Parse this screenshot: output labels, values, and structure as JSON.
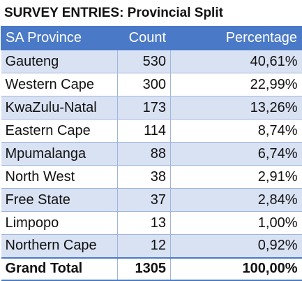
{
  "title": "SURVEY ENTRIES: Provincial Split",
  "header": {
    "province": "SA Province",
    "count": "Count",
    "percentage": "Percentage"
  },
  "rows": [
    {
      "province": "Gauteng",
      "count": "530",
      "percentage": "40,61%"
    },
    {
      "province": "Western Cape",
      "count": "300",
      "percentage": "22,99%"
    },
    {
      "province": "KwaZulu-Natal",
      "count": "173",
      "percentage": "13,26%"
    },
    {
      "province": "Eastern Cape",
      "count": "114",
      "percentage": "8,74%"
    },
    {
      "province": "Mpumalanga",
      "count": "88",
      "percentage": "6,74%"
    },
    {
      "province": "North West",
      "count": "38",
      "percentage": "2,91%"
    },
    {
      "province": "Free State",
      "count": "37",
      "percentage": "2,84%"
    },
    {
      "province": "Limpopo",
      "count": "13",
      "percentage": "1,00%"
    },
    {
      "province": "Northern Cape",
      "count": "12",
      "percentage": "0,92%"
    }
  ],
  "total": {
    "label": "Grand Total",
    "count": "1305",
    "percentage": "100,00%"
  },
  "colors": {
    "header_bg": "#4a7ac7",
    "band_bg": "#d9e2f3",
    "border": "#9fb6dc"
  }
}
